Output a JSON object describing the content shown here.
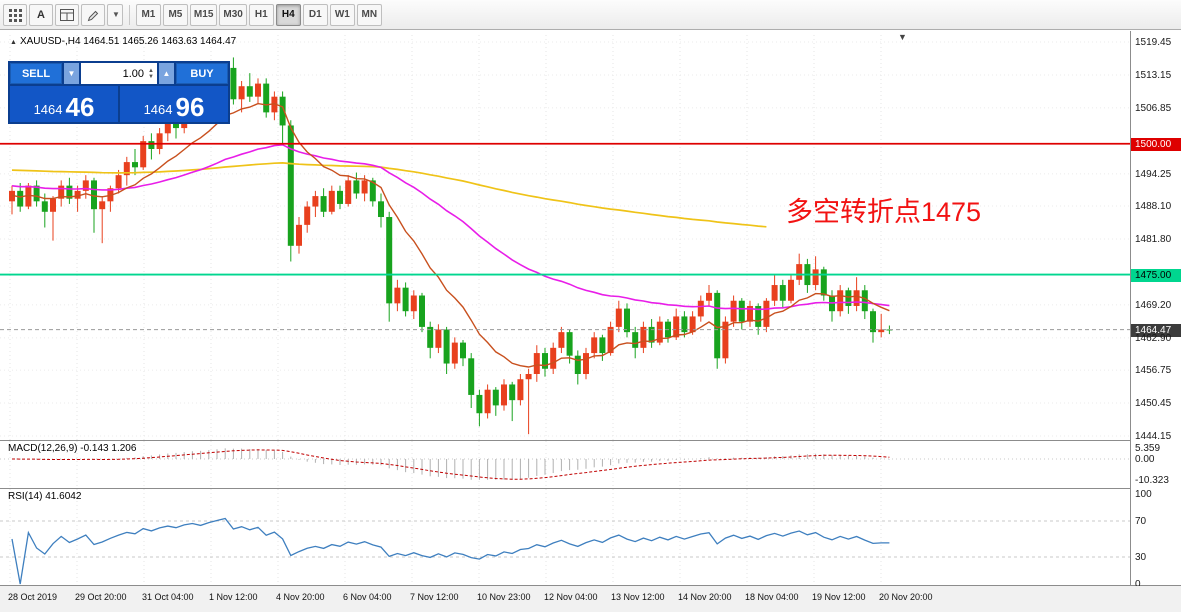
{
  "toolbar": {
    "letter_button": "A",
    "timeframes": [
      "M1",
      "M5",
      "M15",
      "M30",
      "H1",
      "H4",
      "D1",
      "W1",
      "MN"
    ],
    "active_timeframe": "H4"
  },
  "chart": {
    "title": "XAUUSD-,H4 1464.51 1465.26 1463.63 1464.47",
    "annotation": "多空转折点1475"
  },
  "trade_panel": {
    "sell_label": "SELL",
    "buy_label": "BUY",
    "volume": "1.00",
    "sell_price_main": "1464",
    "sell_price_pips": "46",
    "buy_price_main": "1464",
    "buy_price_pips": "96"
  },
  "price_axis": {
    "ticks": [
      {
        "label": "1519.45",
        "price": 1519.45,
        "style": "normal"
      },
      {
        "label": "1513.15",
        "price": 1513.15,
        "style": "normal"
      },
      {
        "label": "1506.85",
        "price": 1506.85,
        "style": "normal"
      },
      {
        "label": "1500.00",
        "price": 1500.0,
        "style": "red"
      },
      {
        "label": "1494.25",
        "price": 1494.25,
        "style": "normal"
      },
      {
        "label": "1488.10",
        "price": 1488.1,
        "style": "normal"
      },
      {
        "label": "1481.80",
        "price": 1481.8,
        "style": "normal"
      },
      {
        "label": "1475.00",
        "price": 1475.0,
        "style": "cyan"
      },
      {
        "label": "1469.20",
        "price": 1469.2,
        "style": "normal"
      },
      {
        "label": "1464.47",
        "price": 1464.47,
        "style": "dark"
      },
      {
        "label": "1462.90",
        "price": 1462.9,
        "style": "normal"
      },
      {
        "label": "1456.75",
        "price": 1456.75,
        "style": "normal"
      },
      {
        "label": "1450.45",
        "price": 1450.45,
        "style": "normal"
      },
      {
        "label": "1444.15",
        "price": 1444.15,
        "style": "normal"
      }
    ]
  },
  "macd": {
    "display": "MACD(12,26,9) -0.143 1.206",
    "params": "12,26,9",
    "main_value": "-0.143",
    "signal_value": "1.206",
    "axis": [
      {
        "label": "5.359",
        "value": 5.359
      },
      {
        "label": "0.00",
        "value": 0
      },
      {
        "label": "-10.323",
        "value": -10.323
      }
    ]
  },
  "rsi": {
    "display": "RSI(14) 41.6042",
    "period": "14",
    "value": "41.6042",
    "axis": [
      {
        "label": "100",
        "value": 100
      },
      {
        "label": "70",
        "value": 70
      },
      {
        "label": "30",
        "value": 30
      },
      {
        "label": "0",
        "value": 0
      }
    ],
    "levels": [
      70,
      30
    ]
  },
  "time_axis": {
    "labels": [
      "28 Oct 2019",
      "29 Oct 20:00",
      "31 Oct 04:00",
      "1 Nov 12:00",
      "4 Nov 20:00",
      "6 Nov 04:00",
      "7 Nov 12:00",
      "10 Nov 23:00",
      "12 Nov 04:00",
      "13 Nov 12:00",
      "14 Nov 20:00",
      "18 Nov 04:00",
      "19 Nov 12:00",
      "20 Nov 20:00"
    ]
  },
  "chart_data": {
    "type": "candlestick",
    "symbol": "XAUUSD-",
    "timeframe": "H4",
    "title": "XAUUSD-,H4 1464.51 1465.26 1463.63 1464.47",
    "last_ohlc": {
      "open": 1464.51,
      "high": 1465.26,
      "low": 1463.63,
      "close": 1464.47
    },
    "current_price": 1464.47,
    "y_range": [
      1444.15,
      1519.45
    ],
    "up_color": "#E8401E",
    "down_color": "#18A31E",
    "horizontal_lines": [
      {
        "price": 1500.0,
        "label": "1500.00",
        "color": "#DE0000",
        "name": "horizontal-line-1500"
      },
      {
        "price": 1475.0,
        "label": "1475.00",
        "color": "#00D68F",
        "name": "horizontal-line-1475"
      }
    ],
    "moving_averages": [
      {
        "id": "slow",
        "color": "#EFC318"
      },
      {
        "id": "mid",
        "color": "#E81EE8"
      },
      {
        "id": "fast",
        "color": "#C8501E"
      }
    ],
    "indicators": {
      "macd": {
        "params": [
          12,
          26,
          9
        ],
        "main": -0.143,
        "signal": 1.206,
        "axis_max": 5.359,
        "axis_min": -10.323
      },
      "rsi": {
        "period": 14,
        "value": 41.6042,
        "levels": [
          70,
          30
        ]
      }
    },
    "x_labels": [
      "28 Oct 2019",
      "29 Oct 20:00",
      "31 Oct 04:00",
      "1 Nov 12:00",
      "4 Nov 20:00",
      "6 Nov 04:00",
      "7 Nov 12:00",
      "10 Nov 23:00",
      "12 Nov 04:00",
      "13 Nov 12:00",
      "14 Nov 20:00",
      "18 Nov 04:00",
      "19 Nov 12:00",
      "20 Nov 20:00"
    ],
    "ohlc": [
      [
        1489.0,
        1492.0,
        1486.5,
        1491.0
      ],
      [
        1491.0,
        1492.5,
        1487.0,
        1488.0
      ],
      [
        1488.0,
        1492.5,
        1487.5,
        1492.0
      ],
      [
        1492.0,
        1493.0,
        1488.0,
        1489.0
      ],
      [
        1489.0,
        1490.5,
        1484.0,
        1487.0
      ],
      [
        1487.0,
        1490.0,
        1481.5,
        1489.5
      ],
      [
        1489.5,
        1493.0,
        1488.0,
        1492.0
      ],
      [
        1492.0,
        1493.5,
        1488.5,
        1489.5
      ],
      [
        1489.5,
        1492.0,
        1487.0,
        1491.0
      ],
      [
        1491.0,
        1494.0,
        1489.5,
        1493.0
      ],
      [
        1493.0,
        1493.5,
        1483.0,
        1487.5
      ],
      [
        1487.5,
        1490.0,
        1481.0,
        1489.0
      ],
      [
        1489.0,
        1492.0,
        1487.0,
        1491.5
      ],
      [
        1491.5,
        1495.0,
        1490.5,
        1494.0
      ],
      [
        1494.0,
        1497.5,
        1492.0,
        1496.5
      ],
      [
        1496.5,
        1499.0,
        1494.0,
        1495.5
      ],
      [
        1495.5,
        1501.5,
        1495.0,
        1500.5
      ],
      [
        1500.5,
        1502.0,
        1497.0,
        1499.0
      ],
      [
        1499.0,
        1503.0,
        1498.0,
        1502.0
      ],
      [
        1502.0,
        1504.5,
        1500.5,
        1504.0
      ],
      [
        1504.0,
        1505.0,
        1501.0,
        1503.0
      ],
      [
        1503.0,
        1506.5,
        1502.0,
        1506.0
      ],
      [
        1506.0,
        1508.0,
        1504.0,
        1507.5
      ],
      [
        1507.5,
        1509.5,
        1505.5,
        1506.5
      ],
      [
        1506.5,
        1510.0,
        1505.0,
        1509.5
      ],
      [
        1509.5,
        1513.0,
        1508.5,
        1512.0
      ],
      [
        1512.0,
        1515.5,
        1511.0,
        1514.5
      ],
      [
        1514.5,
        1516.5,
        1507.5,
        1508.5
      ],
      [
        1508.5,
        1512.0,
        1506.0,
        1511.0
      ],
      [
        1511.0,
        1513.5,
        1508.0,
        1509.0
      ],
      [
        1509.0,
        1512.5,
        1507.5,
        1511.5
      ],
      [
        1511.5,
        1512.5,
        1505.0,
        1506.0
      ],
      [
        1506.0,
        1510.0,
        1504.5,
        1509.0
      ],
      [
        1509.0,
        1510.0,
        1500.0,
        1503.5
      ],
      [
        1503.5,
        1504.5,
        1477.5,
        1480.5
      ],
      [
        1480.5,
        1486.0,
        1479.0,
        1484.5
      ],
      [
        1484.5,
        1489.0,
        1483.0,
        1488.0
      ],
      [
        1488.0,
        1491.0,
        1486.0,
        1490.0
      ],
      [
        1490.0,
        1491.5,
        1486.0,
        1487.0
      ],
      [
        1487.0,
        1492.0,
        1486.5,
        1491.0
      ],
      [
        1491.0,
        1492.0,
        1487.5,
        1488.5
      ],
      [
        1488.5,
        1494.0,
        1488.0,
        1493.0
      ],
      [
        1493.0,
        1494.5,
        1489.5,
        1490.5
      ],
      [
        1490.5,
        1494.0,
        1489.0,
        1493.0
      ],
      [
        1493.0,
        1493.5,
        1488.0,
        1489.0
      ],
      [
        1489.0,
        1490.5,
        1484.0,
        1486.0
      ],
      [
        1486.0,
        1487.0,
        1466.0,
        1469.5
      ],
      [
        1469.5,
        1474.0,
        1468.0,
        1472.5
      ],
      [
        1472.5,
        1473.5,
        1467.0,
        1468.0
      ],
      [
        1468.0,
        1472.0,
        1466.5,
        1471.0
      ],
      [
        1471.0,
        1471.5,
        1464.0,
        1465.0
      ],
      [
        1465.0,
        1466.0,
        1459.0,
        1461.0
      ],
      [
        1461.0,
        1465.5,
        1460.0,
        1464.5
      ],
      [
        1464.5,
        1465.0,
        1456.0,
        1458.0
      ],
      [
        1458.0,
        1463.0,
        1457.0,
        1462.0
      ],
      [
        1462.0,
        1462.5,
        1457.5,
        1459.0
      ],
      [
        1459.0,
        1460.0,
        1449.5,
        1452.0
      ],
      [
        1452.0,
        1453.0,
        1446.0,
        1448.5
      ],
      [
        1448.5,
        1454.0,
        1447.5,
        1453.0
      ],
      [
        1453.0,
        1453.5,
        1448.0,
        1450.0
      ],
      [
        1450.0,
        1455.0,
        1449.0,
        1454.0
      ],
      [
        1454.0,
        1454.5,
        1447.0,
        1451.0
      ],
      [
        1451.0,
        1456.0,
        1450.0,
        1455.0
      ],
      [
        1455.0,
        1457.0,
        1444.5,
        1456.0
      ],
      [
        1456.0,
        1461.5,
        1454.5,
        1460.0
      ],
      [
        1460.0,
        1461.0,
        1455.5,
        1457.0
      ],
      [
        1457.0,
        1462.0,
        1456.0,
        1461.0
      ],
      [
        1461.0,
        1465.0,
        1460.0,
        1464.0
      ],
      [
        1464.0,
        1464.5,
        1458.0,
        1459.5
      ],
      [
        1459.5,
        1460.5,
        1454.0,
        1456.0
      ],
      [
        1456.0,
        1461.0,
        1455.0,
        1460.0
      ],
      [
        1460.0,
        1464.0,
        1459.0,
        1463.0
      ],
      [
        1463.0,
        1463.5,
        1458.5,
        1460.0
      ],
      [
        1460.0,
        1466.0,
        1459.5,
        1465.0
      ],
      [
        1465.0,
        1470.0,
        1464.0,
        1468.5
      ],
      [
        1468.5,
        1469.5,
        1463.0,
        1464.0
      ],
      [
        1464.0,
        1465.0,
        1459.0,
        1461.0
      ],
      [
        1461.0,
        1466.0,
        1460.0,
        1465.0
      ],
      [
        1465.0,
        1466.5,
        1461.0,
        1462.0
      ],
      [
        1462.0,
        1467.0,
        1461.5,
        1466.0
      ],
      [
        1466.0,
        1466.5,
        1462.0,
        1463.0
      ],
      [
        1463.0,
        1468.5,
        1462.5,
        1467.0
      ],
      [
        1467.0,
        1468.0,
        1463.0,
        1464.0
      ],
      [
        1464.0,
        1468.0,
        1463.5,
        1467.0
      ],
      [
        1467.0,
        1471.0,
        1466.0,
        1470.0
      ],
      [
        1470.0,
        1473.0,
        1469.0,
        1471.5
      ],
      [
        1471.5,
        1472.0,
        1457.0,
        1459.0
      ],
      [
        1459.0,
        1467.0,
        1458.0,
        1466.0
      ],
      [
        1466.0,
        1471.0,
        1465.0,
        1470.0
      ],
      [
        1470.0,
        1470.5,
        1464.5,
        1466.0
      ],
      [
        1466.0,
        1470.0,
        1465.0,
        1469.0
      ],
      [
        1469.0,
        1469.5,
        1463.5,
        1465.0
      ],
      [
        1465.0,
        1470.5,
        1464.0,
        1470.0
      ],
      [
        1470.0,
        1475.0,
        1469.0,
        1473.0
      ],
      [
        1473.0,
        1474.0,
        1468.5,
        1470.0
      ],
      [
        1470.0,
        1475.0,
        1469.5,
        1474.0
      ],
      [
        1474.0,
        1479.0,
        1473.0,
        1477.0
      ],
      [
        1477.0,
        1478.0,
        1471.5,
        1473.0
      ],
      [
        1473.0,
        1478.5,
        1472.0,
        1476.0
      ],
      [
        1476.0,
        1476.5,
        1470.0,
        1471.0
      ],
      [
        1471.0,
        1472.0,
        1466.0,
        1468.0
      ],
      [
        1468.0,
        1473.0,
        1467.0,
        1472.0
      ],
      [
        1472.0,
        1472.5,
        1467.5,
        1469.0
      ],
      [
        1469.0,
        1474.5,
        1468.0,
        1472.0
      ],
      [
        1472.0,
        1473.0,
        1466.5,
        1468.0
      ],
      [
        1468.0,
        1468.5,
        1462.0,
        1464.0
      ],
      [
        1464.0,
        1467.5,
        1463.0,
        1464.5
      ],
      [
        1464.51,
        1465.26,
        1463.63,
        1464.47
      ]
    ]
  }
}
